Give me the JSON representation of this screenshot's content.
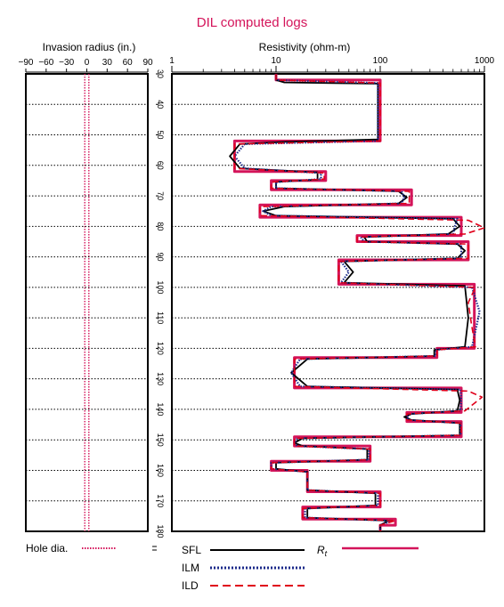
{
  "chart_data": {
    "type": "line",
    "title": "DIL computed logs",
    "invasion_panel": {
      "xlabel": "Invasion radius (in.)",
      "xticks": [
        -90,
        -60,
        -30,
        0,
        30,
        60,
        90
      ],
      "xlim": [
        -90,
        90
      ],
      "hole_dia_in": [
        -3,
        3
      ]
    },
    "resistivity_panel": {
      "xlabel": "Resistivity (ohm-m)",
      "xscale": "log",
      "xlim": [
        1,
        1000
      ],
      "xticks": [
        1,
        10,
        100,
        1000
      ]
    },
    "depth_axis": {
      "ylim": [
        30,
        180
      ],
      "yticks": [
        30,
        40,
        50,
        60,
        70,
        80,
        90,
        100,
        110,
        120,
        130,
        140,
        150,
        160,
        170,
        180
      ],
      "grid": true
    },
    "series": [
      {
        "name": "Rt",
        "color": "#d4145a",
        "style": "solid-thick",
        "points": [
          [
            10,
            30
          ],
          [
            10,
            32
          ],
          [
            100,
            32
          ],
          [
            100,
            52
          ],
          [
            4,
            52
          ],
          [
            4,
            62
          ],
          [
            30,
            62
          ],
          [
            30,
            65
          ],
          [
            9,
            65
          ],
          [
            9,
            68
          ],
          [
            200,
            68
          ],
          [
            200,
            73
          ],
          [
            7,
            73
          ],
          [
            7,
            77
          ],
          [
            600,
            77
          ],
          [
            600,
            83
          ],
          [
            60,
            83
          ],
          [
            60,
            85
          ],
          [
            700,
            85
          ],
          [
            700,
            91
          ],
          [
            40,
            91
          ],
          [
            40,
            99
          ],
          [
            800,
            99
          ],
          [
            800,
            120
          ],
          [
            350,
            120
          ],
          [
            350,
            123
          ],
          [
            15,
            123
          ],
          [
            15,
            133
          ],
          [
            600,
            133
          ],
          [
            600,
            141
          ],
          [
            180,
            141
          ],
          [
            180,
            144
          ],
          [
            600,
            144
          ],
          [
            600,
            149
          ],
          [
            15,
            149
          ],
          [
            15,
            152
          ],
          [
            80,
            152
          ],
          [
            80,
            157
          ],
          [
            9,
            157
          ],
          [
            9,
            160
          ],
          [
            20,
            160
          ],
          [
            20,
            167
          ],
          [
            100,
            167
          ],
          [
            100,
            172
          ],
          [
            18,
            172
          ],
          [
            18,
            176
          ],
          [
            140,
            176
          ],
          [
            140,
            178
          ],
          [
            100,
            178
          ],
          [
            100,
            180
          ]
        ]
      },
      {
        "name": "SFL",
        "color": "#000000",
        "style": "solid",
        "points": [
          [
            10,
            30
          ],
          [
            10,
            32
          ],
          [
            12,
            32.8
          ],
          [
            95,
            33.2
          ],
          [
            95,
            51.5
          ],
          [
            12,
            52.3
          ],
          [
            4.5,
            53
          ],
          [
            3.6,
            57
          ],
          [
            4.5,
            61
          ],
          [
            25,
            62.3
          ],
          [
            25,
            64.7
          ],
          [
            10,
            65.4
          ],
          [
            10,
            67.5
          ],
          [
            150,
            68.5
          ],
          [
            180,
            70.5
          ],
          [
            150,
            72.5
          ],
          [
            12,
            73.5
          ],
          [
            7.5,
            75
          ],
          [
            10,
            76.5
          ],
          [
            500,
            77.5
          ],
          [
            580,
            80
          ],
          [
            450,
            82.5
          ],
          [
            70,
            83.5
          ],
          [
            75,
            85
          ],
          [
            550,
            85.8
          ],
          [
            650,
            88
          ],
          [
            550,
            90.5
          ],
          [
            45,
            91.5
          ],
          [
            55,
            95
          ],
          [
            45,
            98.5
          ],
          [
            650,
            99.5
          ],
          [
            700,
            110
          ],
          [
            650,
            119.5
          ],
          [
            330,
            120.5
          ],
          [
            330,
            122.5
          ],
          [
            20,
            123.5
          ],
          [
            14,
            128
          ],
          [
            20,
            132.5
          ],
          [
            550,
            133.5
          ],
          [
            580,
            137
          ],
          [
            550,
            140.5
          ],
          [
            200,
            141.5
          ],
          [
            170,
            142.5
          ],
          [
            200,
            143.5
          ],
          [
            580,
            144.5
          ],
          [
            580,
            148.5
          ],
          [
            18,
            149.5
          ],
          [
            15,
            151
          ],
          [
            18,
            152
          ],
          [
            75,
            153
          ],
          [
            75,
            156.5
          ],
          [
            10,
            157.5
          ],
          [
            10,
            159.5
          ],
          [
            20,
            160.5
          ],
          [
            20,
            166.5
          ],
          [
            90,
            167.5
          ],
          [
            90,
            171.5
          ],
          [
            20,
            172.5
          ],
          [
            20,
            175.5
          ],
          [
            120,
            176.5
          ],
          [
            100,
            178
          ],
          [
            100,
            180
          ]
        ]
      },
      {
        "name": "ILM",
        "color": "#1b2a8a",
        "style": "dotted",
        "points": [
          [
            10,
            30
          ],
          [
            10,
            32
          ],
          [
            95,
            33
          ],
          [
            95,
            52
          ],
          [
            5,
            53
          ],
          [
            4,
            57
          ],
          [
            5,
            61
          ],
          [
            27,
            62.5
          ],
          [
            27,
            64.5
          ],
          [
            10,
            65.5
          ],
          [
            10,
            67.5
          ],
          [
            160,
            68.5
          ],
          [
            170,
            70.5
          ],
          [
            160,
            72.5
          ],
          [
            9,
            73.5
          ],
          [
            7.5,
            75
          ],
          [
            9,
            76.5
          ],
          [
            550,
            77.5
          ],
          [
            520,
            80
          ],
          [
            500,
            82.5
          ],
          [
            65,
            83.5
          ],
          [
            70,
            85
          ],
          [
            600,
            85.8
          ],
          [
            600,
            88
          ],
          [
            600,
            90.5
          ],
          [
            42,
            91.5
          ],
          [
            50,
            95
          ],
          [
            42,
            98.5
          ],
          [
            760,
            100
          ],
          [
            900,
            108
          ],
          [
            760,
            119.5
          ],
          [
            340,
            120.5
          ],
          [
            340,
            122.5
          ],
          [
            17,
            123.5
          ],
          [
            14,
            128
          ],
          [
            17,
            132.5
          ],
          [
            590,
            133.5
          ],
          [
            600,
            137
          ],
          [
            590,
            140.5
          ],
          [
            190,
            141.5
          ],
          [
            180,
            142.5
          ],
          [
            190,
            143.5
          ],
          [
            590,
            144.5
          ],
          [
            590,
            148.5
          ],
          [
            16,
            149.5
          ],
          [
            15,
            151
          ],
          [
            16,
            152
          ],
          [
            78,
            153
          ],
          [
            78,
            156.5
          ],
          [
            9,
            157.5
          ],
          [
            9,
            159.5
          ],
          [
            20,
            160.5
          ],
          [
            20,
            166.5
          ],
          [
            95,
            167.5
          ],
          [
            95,
            171.5
          ],
          [
            19,
            172.5
          ],
          [
            19,
            175.5
          ],
          [
            130,
            176.5
          ],
          [
            100,
            178
          ],
          [
            100,
            180
          ]
        ]
      },
      {
        "name": "ILD",
        "color": "#e0001a",
        "style": "dashed",
        "points": [
          [
            10,
            30
          ],
          [
            10,
            32
          ],
          [
            100,
            33
          ],
          [
            100,
            52
          ],
          [
            4,
            53
          ],
          [
            4,
            61
          ],
          [
            29,
            62.5
          ],
          [
            29,
            64.5
          ],
          [
            9,
            65.5
          ],
          [
            9,
            67.5
          ],
          [
            190,
            68.5
          ],
          [
            190,
            72.5
          ],
          [
            7,
            73.5
          ],
          [
            7,
            76.5
          ],
          [
            700,
            78
          ],
          [
            1000,
            80.5
          ],
          [
            650,
            82.5
          ],
          [
            60,
            83.5
          ],
          [
            60,
            85
          ],
          [
            700,
            85.8
          ],
          [
            700,
            90.5
          ],
          [
            40,
            91.5
          ],
          [
            40,
            98.5
          ],
          [
            820,
            100
          ],
          [
            700,
            105
          ],
          [
            750,
            112
          ],
          [
            820,
            119.5
          ],
          [
            350,
            120.5
          ],
          [
            350,
            122.5
          ],
          [
            15,
            123.5
          ],
          [
            15,
            132.5
          ],
          [
            700,
            134
          ],
          [
            950,
            136
          ],
          [
            650,
            140.5
          ],
          [
            180,
            141.5
          ],
          [
            180,
            143.5
          ],
          [
            600,
            144.5
          ],
          [
            600,
            148.5
          ],
          [
            15,
            149.5
          ],
          [
            15,
            152
          ],
          [
            80,
            153
          ],
          [
            80,
            156.5
          ],
          [
            9,
            157.5
          ],
          [
            9,
            159.5
          ],
          [
            20,
            160.5
          ],
          [
            20,
            166.5
          ],
          [
            100,
            167.5
          ],
          [
            100,
            171.5
          ],
          [
            18,
            172.5
          ],
          [
            18,
            175.5
          ],
          [
            140,
            176.5
          ],
          [
            100,
            178
          ],
          [
            100,
            180
          ]
        ]
      }
    ],
    "legend": {
      "position": "bottom",
      "hole_label": "Hole dia.",
      "items": [
        "SFL",
        "ILM",
        "ILD",
        "Rt"
      ]
    }
  }
}
